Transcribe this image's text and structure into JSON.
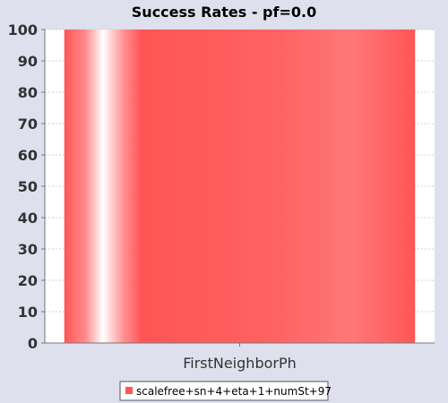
{
  "chart_data": {
    "type": "bar",
    "title": "Success Rates - pf=0.0",
    "categories": [
      "FirstNeighborPh"
    ],
    "series": [
      {
        "name": "scalefree+sn+4+eta+1+numSt+97",
        "values": [
          100
        ],
        "color": "#ff5555"
      }
    ],
    "xlabel": "",
    "ylabel": "",
    "ylim": [
      0,
      100
    ],
    "yticks": [
      0,
      10,
      20,
      30,
      40,
      50,
      60,
      70,
      80,
      90,
      100
    ],
    "grid": true,
    "legend": "bottom"
  },
  "colors": {
    "background": "#dfe0ee",
    "plot_background": "#ffffff",
    "gridline": "#c0c0c0",
    "bar": "#ff5555"
  }
}
